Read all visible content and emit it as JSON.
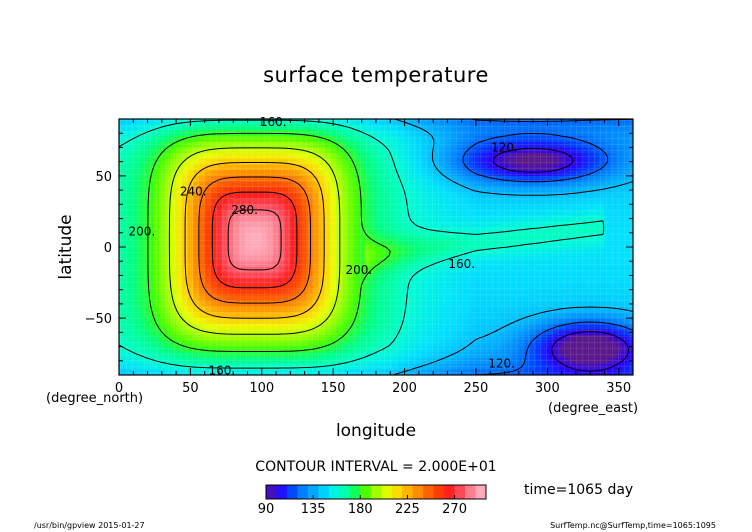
{
  "chart_data": {
    "type": "heatmap",
    "title": "surface temperature",
    "xlabel": "longitude",
    "ylabel": "latitude",
    "x_unit": "(degree_east)",
    "y_unit": "(degree_north)",
    "xlim": [
      0,
      360
    ],
    "ylim": [
      -90,
      90
    ],
    "x_ticks": [
      "0",
      "50",
      "100",
      "150",
      "200",
      "250",
      "300",
      "350"
    ],
    "y_ticks": [
      "50",
      "0",
      "−50"
    ],
    "contour_interval_text": "CONTOUR INTERVAL = 2.000E+01",
    "contour_interval": 20,
    "time_label": "time=1065 day",
    "colorbar": {
      "range": [
        90,
        300
      ],
      "tick_labels": [
        "90",
        "135",
        "180",
        "225",
        "270"
      ],
      "colors": [
        "#5a1a8c",
        "#2a00ff",
        "#0040ff",
        "#0080ff",
        "#00b0ff",
        "#00e0ff",
        "#00ffd0",
        "#00ff80",
        "#40ff00",
        "#a0ff00",
        "#e8ff00",
        "#ffd000",
        "#ffa000",
        "#ff7000",
        "#ff4000",
        "#ff2020",
        "#ff5060",
        "#ff90a0",
        "#ffc0d0"
      ]
    },
    "contour_labels": [
      {
        "text": "160.",
        "lon": 108,
        "lat": 88
      },
      {
        "text": "200.",
        "lon": 16,
        "lat": 11
      },
      {
        "text": "240.",
        "lon": 52,
        "lat": 39
      },
      {
        "text": "280.",
        "lon": 88,
        "lat": 26
      },
      {
        "text": "200.",
        "lon": 168,
        "lat": -16
      },
      {
        "text": "160.",
        "lon": 240,
        "lat": -12
      },
      {
        "text": "160.",
        "lon": 72,
        "lat": -87
      },
      {
        "text": "120.",
        "lon": 270,
        "lat": 70
      },
      {
        "text": "120.",
        "lon": 268,
        "lat": -82
      }
    ],
    "features": {
      "warm_pool_center": {
        "lon": 95,
        "lat": 5,
        "value": 295
      },
      "cold_pool_north": {
        "lon": 290,
        "lat": 60,
        "value": 100
      },
      "cold_pool_south": {
        "lon": 330,
        "lat": -70,
        "value": 90
      },
      "background_value": 160
    }
  },
  "footer": {
    "left_text": "/usr/bin/gpview  2015-01-27",
    "right_text": "SurfTemp.nc@SurfTemp,time=1065:1095"
  }
}
